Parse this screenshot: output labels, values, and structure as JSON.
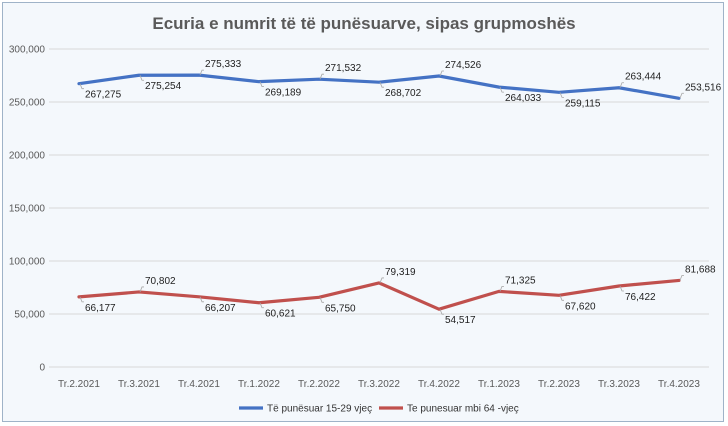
{
  "chart_data": {
    "type": "line",
    "title": "Ecuria e numrit të të punësuarve, sipas grupmoshës",
    "xlabel": "",
    "ylabel": "",
    "categories": [
      "Tr.2.2021",
      "Tr.3.2021",
      "Tr.4.2021",
      "Tr.1.2022",
      "Tr.2.2022",
      "Tr.3.2022",
      "Tr.4.2022",
      "Tr.1.2023",
      "Tr.2.2023",
      "Tr.3.2023",
      "Tr.4.2023"
    ],
    "ylim": [
      0,
      300000
    ],
    "yticks": [
      0,
      50000,
      100000,
      150000,
      200000,
      250000,
      300000
    ],
    "ytick_labels": [
      "0",
      "50,000",
      "100,000",
      "150,000",
      "200,000",
      "250,000",
      "300,000"
    ],
    "grid": true,
    "legend_position": "bottom",
    "series": [
      {
        "name": "Të punësuar 15-29 vjeç",
        "color": "#4472c4",
        "values": [
          267275,
          275254,
          275333,
          269189,
          271532,
          268702,
          274526,
          264033,
          259115,
          263444,
          253516
        ],
        "labels": [
          "267,275",
          "275,254",
          "275,333",
          "269,189",
          "271,532",
          "268,702",
          "274,526",
          "264,033",
          "259,115",
          "263,444",
          "253,516"
        ]
      },
      {
        "name": "Te punesuar mbi 64 -vjeç",
        "color": "#c0504d",
        "values": [
          66177,
          70802,
          66207,
          60621,
          65750,
          79319,
          54517,
          71325,
          67620,
          76422,
          81688
        ],
        "labels": [
          "66,177",
          "70,802",
          "66,207",
          "60,621",
          "65,750",
          "79,319",
          "54,517",
          "71,325",
          "67,620",
          "76,422",
          "81,688"
        ]
      }
    ]
  }
}
